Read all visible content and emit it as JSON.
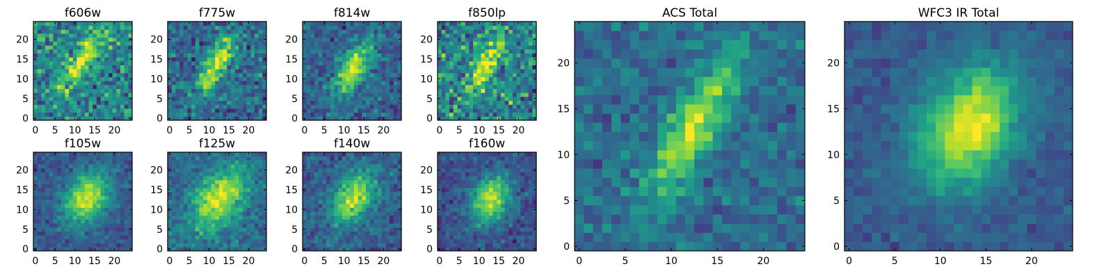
{
  "chart_data": [
    {
      "type": "heatmap",
      "title": "f606w",
      "xlim": [
        0,
        25
      ],
      "ylim": [
        0,
        25
      ],
      "xticks": [
        0,
        5,
        10,
        15,
        20
      ],
      "yticks": [
        0,
        5,
        10,
        15,
        20
      ],
      "colormap": "viridis",
      "blob": {
        "center": [
          12.0,
          15.0
        ],
        "peak": 0.55,
        "sigma_major": 6.0,
        "sigma_minor": 1.8,
        "angle_deg": 55,
        "background": 0.45,
        "noise": 0.18
      }
    },
    {
      "type": "heatmap",
      "title": "f775w",
      "xlim": [
        0,
        25
      ],
      "ylim": [
        0,
        25
      ],
      "xticks": [
        0,
        5,
        10,
        15,
        20
      ],
      "yticks": [
        0,
        5,
        10,
        15,
        20
      ],
      "colormap": "viridis",
      "blob": {
        "center": [
          12.0,
          14.0
        ],
        "peak": 0.6,
        "sigma_major": 5.5,
        "sigma_minor": 1.8,
        "angle_deg": 60,
        "background": 0.35,
        "noise": 0.15
      }
    },
    {
      "type": "heatmap",
      "title": "f814w",
      "xlim": [
        0,
        25
      ],
      "ylim": [
        0,
        25
      ],
      "xticks": [
        0,
        5,
        10,
        15,
        20
      ],
      "yticks": [
        0,
        5,
        10,
        15,
        20
      ],
      "colormap": "viridis",
      "blob": {
        "center": [
          12.5,
          13.0
        ],
        "peak": 0.65,
        "sigma_major": 5.0,
        "sigma_minor": 2.0,
        "angle_deg": 60,
        "background": 0.32,
        "noise": 0.12
      }
    },
    {
      "type": "heatmap",
      "title": "f850lp",
      "xlim": [
        0,
        25
      ],
      "ylim": [
        0,
        25
      ],
      "xticks": [
        0,
        5,
        10,
        15,
        20
      ],
      "yticks": [
        0,
        5,
        10,
        15,
        20
      ],
      "colormap": "viridis",
      "blob": {
        "center": [
          12.0,
          14.0
        ],
        "peak": 0.55,
        "sigma_major": 6.0,
        "sigma_minor": 2.0,
        "angle_deg": 60,
        "background": 0.45,
        "noise": 0.2
      }
    },
    {
      "type": "heatmap",
      "title": "f105w",
      "xlim": [
        0,
        25
      ],
      "ylim": [
        0,
        25
      ],
      "xticks": [
        0,
        5,
        10,
        15,
        20
      ],
      "yticks": [
        0,
        5,
        10,
        15,
        20
      ],
      "colormap": "viridis",
      "blob": {
        "center": [
          13.0,
          13.0
        ],
        "peak": 0.65,
        "sigma_major": 5.0,
        "sigma_minor": 3.5,
        "angle_deg": 60,
        "background": 0.28,
        "noise": 0.08
      }
    },
    {
      "type": "heatmap",
      "title": "f125w",
      "xlim": [
        0,
        25
      ],
      "ylim": [
        0,
        25
      ],
      "xticks": [
        0,
        5,
        10,
        15,
        20
      ],
      "yticks": [
        0,
        5,
        10,
        15,
        20
      ],
      "colormap": "viridis",
      "blob": {
        "center": [
          12.5,
          12.5
        ],
        "peak": 0.6,
        "sigma_major": 6.0,
        "sigma_minor": 3.8,
        "angle_deg": 55,
        "background": 0.35,
        "noise": 0.1
      }
    },
    {
      "type": "heatmap",
      "title": "f140w",
      "xlim": [
        0,
        25
      ],
      "ylim": [
        0,
        25
      ],
      "xticks": [
        0,
        5,
        10,
        15,
        20
      ],
      "yticks": [
        0,
        5,
        10,
        15,
        20
      ],
      "colormap": "viridis",
      "blob": {
        "center": [
          12.5,
          13.0
        ],
        "peak": 0.6,
        "sigma_major": 5.0,
        "sigma_minor": 3.2,
        "angle_deg": 60,
        "background": 0.3,
        "noise": 0.1
      }
    },
    {
      "type": "heatmap",
      "title": "f160w",
      "xlim": [
        0,
        25
      ],
      "ylim": [
        0,
        25
      ],
      "xticks": [
        0,
        5,
        10,
        15,
        20
      ],
      "yticks": [
        0,
        5,
        10,
        15,
        20
      ],
      "colormap": "viridis",
      "blob": {
        "center": [
          13.0,
          12.5
        ],
        "peak": 0.65,
        "sigma_major": 4.5,
        "sigma_minor": 3.2,
        "angle_deg": 60,
        "background": 0.25,
        "noise": 0.09
      }
    },
    {
      "type": "heatmap",
      "title": "ACS Total",
      "xlim": [
        0,
        25
      ],
      "ylim": [
        0,
        25
      ],
      "xticks": [
        0,
        5,
        10,
        15,
        20
      ],
      "yticks": [
        0,
        5,
        10,
        15,
        20
      ],
      "colormap": "viridis",
      "blob": {
        "center": [
          12.5,
          13.0
        ],
        "peak": 0.6,
        "sigma_major": 6.0,
        "sigma_minor": 1.8,
        "angle_deg": 60,
        "background": 0.35,
        "noise": 0.1
      }
    },
    {
      "type": "heatmap",
      "title": "WFC3 IR Total",
      "xlim": [
        0,
        25
      ],
      "ylim": [
        0,
        25
      ],
      "xticks": [
        0,
        5,
        10,
        15,
        20
      ],
      "yticks": [
        0,
        5,
        10,
        15,
        20
      ],
      "colormap": "viridis",
      "blob": {
        "center": [
          13.0,
          13.0
        ],
        "peak": 0.68,
        "sigma_major": 5.0,
        "sigma_minor": 3.5,
        "angle_deg": 60,
        "background": 0.28,
        "noise": 0.06
      }
    }
  ]
}
